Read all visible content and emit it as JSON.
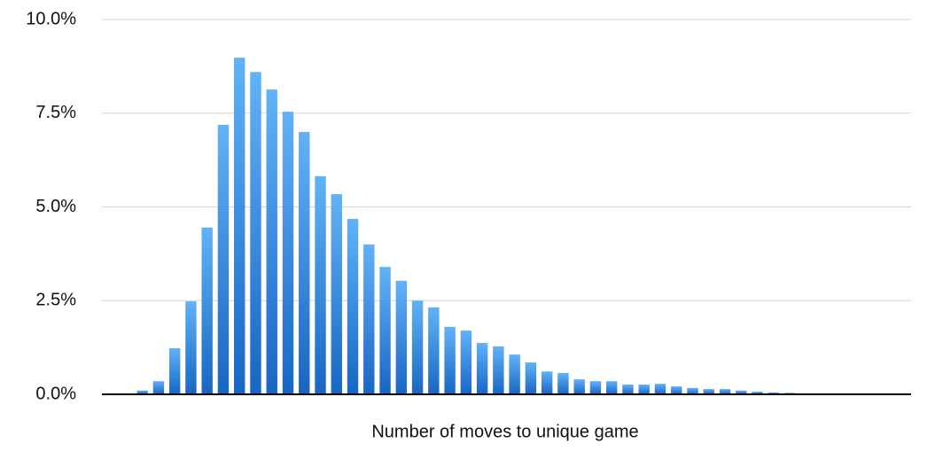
{
  "chart_data": {
    "type": "bar",
    "x_label": "Number of moves to unique game",
    "categories": [
      null,
      null,
      null,
      null,
      null,
      null,
      null,
      null,
      null,
      null,
      null,
      null,
      null,
      null,
      null,
      null,
      null,
      null,
      null,
      null,
      null,
      null,
      null,
      null,
      null,
      null,
      null,
      null,
      null,
      null,
      null,
      null,
      null,
      null,
      null,
      null,
      null,
      null,
      null,
      null,
      null,
      null,
      null,
      null,
      null,
      null,
      null,
      null,
      null,
      null
    ],
    "values": [
      null,
      null,
      0.1,
      0.35,
      1.23,
      2.48,
      4.45,
      7.19,
      8.98,
      8.6,
      8.13,
      7.54,
      7.0,
      5.82,
      5.34,
      4.68,
      4.0,
      3.4,
      3.03,
      2.5,
      2.32,
      1.8,
      1.7,
      1.37,
      1.28,
      1.06,
      0.85,
      0.61,
      0.57,
      0.4,
      0.35,
      0.35,
      0.26,
      0.26,
      0.28,
      0.21,
      0.17,
      0.14,
      0.14,
      0.1,
      0.07,
      0.05,
      0.04,
      null,
      null,
      null,
      null,
      null,
      null,
      null
    ],
    "color_top": "#62b2f7",
    "color_bottom": "#1766c4",
    "ylim": [
      0,
      10
    ],
    "yticks": [
      {
        "value": 0,
        "label": "0.0%"
      },
      {
        "value": 2.5,
        "label": "2.5%"
      },
      {
        "value": 5,
        "label": "5.0%"
      },
      {
        "value": 7.5,
        "label": "7.5%"
      },
      {
        "value": 10,
        "label": "10.0%"
      }
    ],
    "grid": true
  }
}
